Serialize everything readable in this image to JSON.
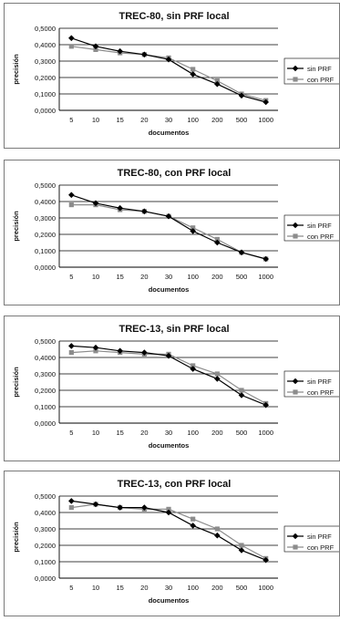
{
  "colors": {
    "sin_prf": "#000000",
    "con_prf": "#8c8c8c",
    "grid": "#000000",
    "frame": "#7a7a7a"
  },
  "chart_data": [
    {
      "type": "line",
      "title": "TREC-80,  sin PRF local",
      "xlabel": "documentos",
      "ylabel": "precisión",
      "categories": [
        "5",
        "10",
        "15",
        "20",
        "30",
        "100",
        "200",
        "500",
        "1000"
      ],
      "yticks": [
        "0,5000",
        "0,4000",
        "0,3000",
        "0,2000",
        "0,1000",
        "0,0000"
      ],
      "ylim": [
        0,
        0.5
      ],
      "grid": "horizontal",
      "legend_position": "right",
      "series": [
        {
          "name": "sin PRF",
          "marker": "diamond",
          "values": [
            0.44,
            0.39,
            0.36,
            0.34,
            0.31,
            0.22,
            0.16,
            0.09,
            0.05
          ]
        },
        {
          "name": "con PRF",
          "marker": "square",
          "values": [
            0.39,
            0.37,
            0.35,
            0.34,
            0.32,
            0.25,
            0.18,
            0.1,
            0.06
          ]
        }
      ]
    },
    {
      "type": "line",
      "title": "TREC-80,  con PRF local",
      "xlabel": "documentos",
      "ylabel": "precisión",
      "categories": [
        "5",
        "10",
        "15",
        "20",
        "30",
        "100",
        "200",
        "500",
        "1000"
      ],
      "yticks": [
        "0,5000",
        "0,4000",
        "0,3000",
        "0,2000",
        "0,1000",
        "0,0000"
      ],
      "ylim": [
        0,
        0.5
      ],
      "grid": "horizontal",
      "legend_position": "right",
      "series": [
        {
          "name": "sin PRF",
          "marker": "diamond",
          "values": [
            0.44,
            0.39,
            0.36,
            0.34,
            0.31,
            0.22,
            0.15,
            0.09,
            0.05
          ]
        },
        {
          "name": "con PRF",
          "marker": "square",
          "values": [
            0.38,
            0.38,
            0.35,
            0.34,
            0.31,
            0.24,
            0.17,
            0.09,
            0.05
          ]
        }
      ]
    },
    {
      "type": "line",
      "title": "TREC-13,  sin PRF local",
      "xlabel": "documentos",
      "ylabel": "precisión",
      "categories": [
        "5",
        "10",
        "15",
        "20",
        "30",
        "100",
        "200",
        "500",
        "1000"
      ],
      "yticks": [
        "0,5000",
        "0,4000",
        "0,3000",
        "0,2000",
        "0,1000",
        "0,0000"
      ],
      "ylim": [
        0,
        0.5
      ],
      "grid": "horizontal",
      "legend_position": "right",
      "series": [
        {
          "name": "sin PRF",
          "marker": "diamond",
          "values": [
            0.47,
            0.46,
            0.44,
            0.43,
            0.41,
            0.33,
            0.27,
            0.17,
            0.11
          ]
        },
        {
          "name": "con PRF",
          "marker": "square",
          "values": [
            0.43,
            0.44,
            0.43,
            0.42,
            0.42,
            0.35,
            0.3,
            0.2,
            0.12
          ]
        }
      ]
    },
    {
      "type": "line",
      "title": "TREC-13,  con PRF local",
      "xlabel": "documentos",
      "ylabel": "precisión",
      "categories": [
        "5",
        "10",
        "15",
        "20",
        "30",
        "100",
        "200",
        "500",
        "1000"
      ],
      "yticks": [
        "0,5000",
        "0,4000",
        "0,3000",
        "0,2000",
        "0,1000",
        "0,0000"
      ],
      "ylim": [
        0,
        0.5
      ],
      "grid": "horizontal",
      "legend_position": "right",
      "series": [
        {
          "name": "sin PRF",
          "marker": "diamond",
          "values": [
            0.47,
            0.45,
            0.43,
            0.43,
            0.4,
            0.32,
            0.26,
            0.17,
            0.11
          ]
        },
        {
          "name": "con PRF",
          "marker": "square",
          "values": [
            0.43,
            0.45,
            0.43,
            0.42,
            0.42,
            0.36,
            0.3,
            0.2,
            0.12
          ]
        }
      ]
    }
  ]
}
